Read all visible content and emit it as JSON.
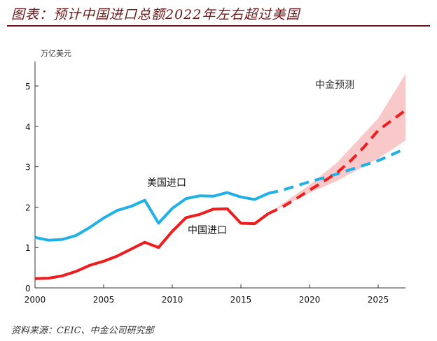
{
  "header": {
    "title": "图表：预计中国进口总额2022年左右超过美国"
  },
  "footer": {
    "source": "资料来源：CEIC、中金公司研究部"
  },
  "colors": {
    "us": "#1fb0e6",
    "china": "#ee1c1c",
    "band": "#f7b5b5",
    "title": "#6b1717"
  },
  "chart_data": {
    "type": "line",
    "title": "预计中国进口总额2022年左右超过美国",
    "ylabel": "万亿美元",
    "xlim": [
      2000,
      2027
    ],
    "ylim": [
      0,
      5.5
    ],
    "xticks": [
      2000,
      2005,
      2010,
      2015,
      2020,
      2025
    ],
    "yticks": [
      0,
      1,
      2,
      3,
      4,
      5
    ],
    "grid": false,
    "annotation": "中金预测",
    "series": [
      {
        "name": "美国进口",
        "style": "solid",
        "color": "#1fb0e6",
        "x": [
          2000,
          2001,
          2002,
          2003,
          2004,
          2005,
          2006,
          2007,
          2008,
          2009,
          2010,
          2011,
          2012,
          2013,
          2014,
          2015,
          2016,
          2017
        ],
        "values": [
          1.25,
          1.18,
          1.2,
          1.3,
          1.5,
          1.73,
          1.92,
          2.02,
          2.17,
          1.6,
          1.97,
          2.21,
          2.28,
          2.27,
          2.36,
          2.25,
          2.19,
          2.34
        ]
      },
      {
        "style": "dashed",
        "color": "#1fb0e6",
        "x": [
          2017,
          2018,
          2019,
          2020,
          2021,
          2022,
          2023,
          2024,
          2025,
          2026,
          2027
        ],
        "values": [
          2.34,
          2.42,
          2.52,
          2.63,
          2.72,
          2.82,
          2.93,
          3.04,
          3.15,
          3.3,
          3.45
        ]
      },
      {
        "name": "中国进口",
        "style": "solid",
        "color": "#ee1c1c",
        "x": [
          2000,
          2001,
          2002,
          2003,
          2004,
          2005,
          2006,
          2007,
          2008,
          2009,
          2010,
          2011,
          2012,
          2013,
          2014,
          2015,
          2016,
          2017
        ],
        "values": [
          0.23,
          0.24,
          0.3,
          0.41,
          0.56,
          0.66,
          0.79,
          0.96,
          1.13,
          1.0,
          1.4,
          1.74,
          1.82,
          1.95,
          1.96,
          1.6,
          1.59,
          1.84
        ]
      },
      {
        "style": "dashed",
        "color": "#ee1c1c",
        "x": [
          2017,
          2018,
          2019,
          2020,
          2021,
          2022,
          2023,
          2024,
          2025,
          2026,
          2027
        ],
        "values": [
          1.84,
          2.0,
          2.2,
          2.42,
          2.63,
          2.85,
          3.15,
          3.5,
          3.9,
          4.15,
          4.4
        ]
      }
    ],
    "band": {
      "x": [
        2017,
        2020,
        2022,
        2025,
        2027
      ],
      "upper": [
        1.84,
        2.55,
        3.1,
        4.2,
        5.3
      ],
      "lower": [
        1.84,
        2.35,
        2.65,
        3.2,
        3.65
      ]
    }
  }
}
